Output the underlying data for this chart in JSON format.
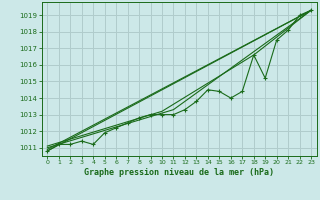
{
  "title": "Graphe pression niveau de la mer (hPa)",
  "bg_color": "#cce8e8",
  "grid_color": "#b0cccc",
  "line_color": "#1a6b1a",
  "xlabel_color": "#1a6b1a",
  "xlim": [
    -0.5,
    23.5
  ],
  "ylim": [
    1010.5,
    1019.8
  ],
  "yticks": [
    1011,
    1012,
    1013,
    1014,
    1015,
    1016,
    1017,
    1018,
    1019
  ],
  "xticks": [
    0,
    1,
    2,
    3,
    4,
    5,
    6,
    7,
    8,
    9,
    10,
    11,
    12,
    13,
    14,
    15,
    16,
    17,
    18,
    19,
    20,
    21,
    22,
    23
  ],
  "main_data": [
    [
      0,
      1010.8
    ],
    [
      1,
      1011.2
    ],
    [
      2,
      1011.2
    ],
    [
      3,
      1011.4
    ],
    [
      4,
      1011.2
    ],
    [
      5,
      1011.9
    ],
    [
      6,
      1012.2
    ],
    [
      7,
      1012.5
    ],
    [
      8,
      1012.8
    ],
    [
      9,
      1013.0
    ],
    [
      10,
      1013.0
    ],
    [
      11,
      1013.0
    ],
    [
      12,
      1013.3
    ],
    [
      13,
      1013.8
    ],
    [
      14,
      1014.5
    ],
    [
      15,
      1014.4
    ],
    [
      16,
      1014.0
    ],
    [
      17,
      1014.4
    ],
    [
      18,
      1016.6
    ],
    [
      19,
      1015.2
    ],
    [
      20,
      1017.5
    ],
    [
      21,
      1018.1
    ],
    [
      22,
      1019.0
    ],
    [
      23,
      1019.3
    ]
  ],
  "smooth_line1": [
    [
      0,
      1010.8
    ],
    [
      23,
      1019.3
    ]
  ],
  "smooth_line2": [
    [
      0,
      1010.9
    ],
    [
      23,
      1019.3
    ]
  ],
  "smooth_line3": [
    [
      0,
      1011.0
    ],
    [
      11,
      1013.3
    ],
    [
      23,
      1019.3
    ]
  ],
  "smooth_line4": [
    [
      0,
      1011.1
    ],
    [
      10,
      1013.2
    ],
    [
      18,
      1016.6
    ],
    [
      23,
      1019.3
    ]
  ]
}
